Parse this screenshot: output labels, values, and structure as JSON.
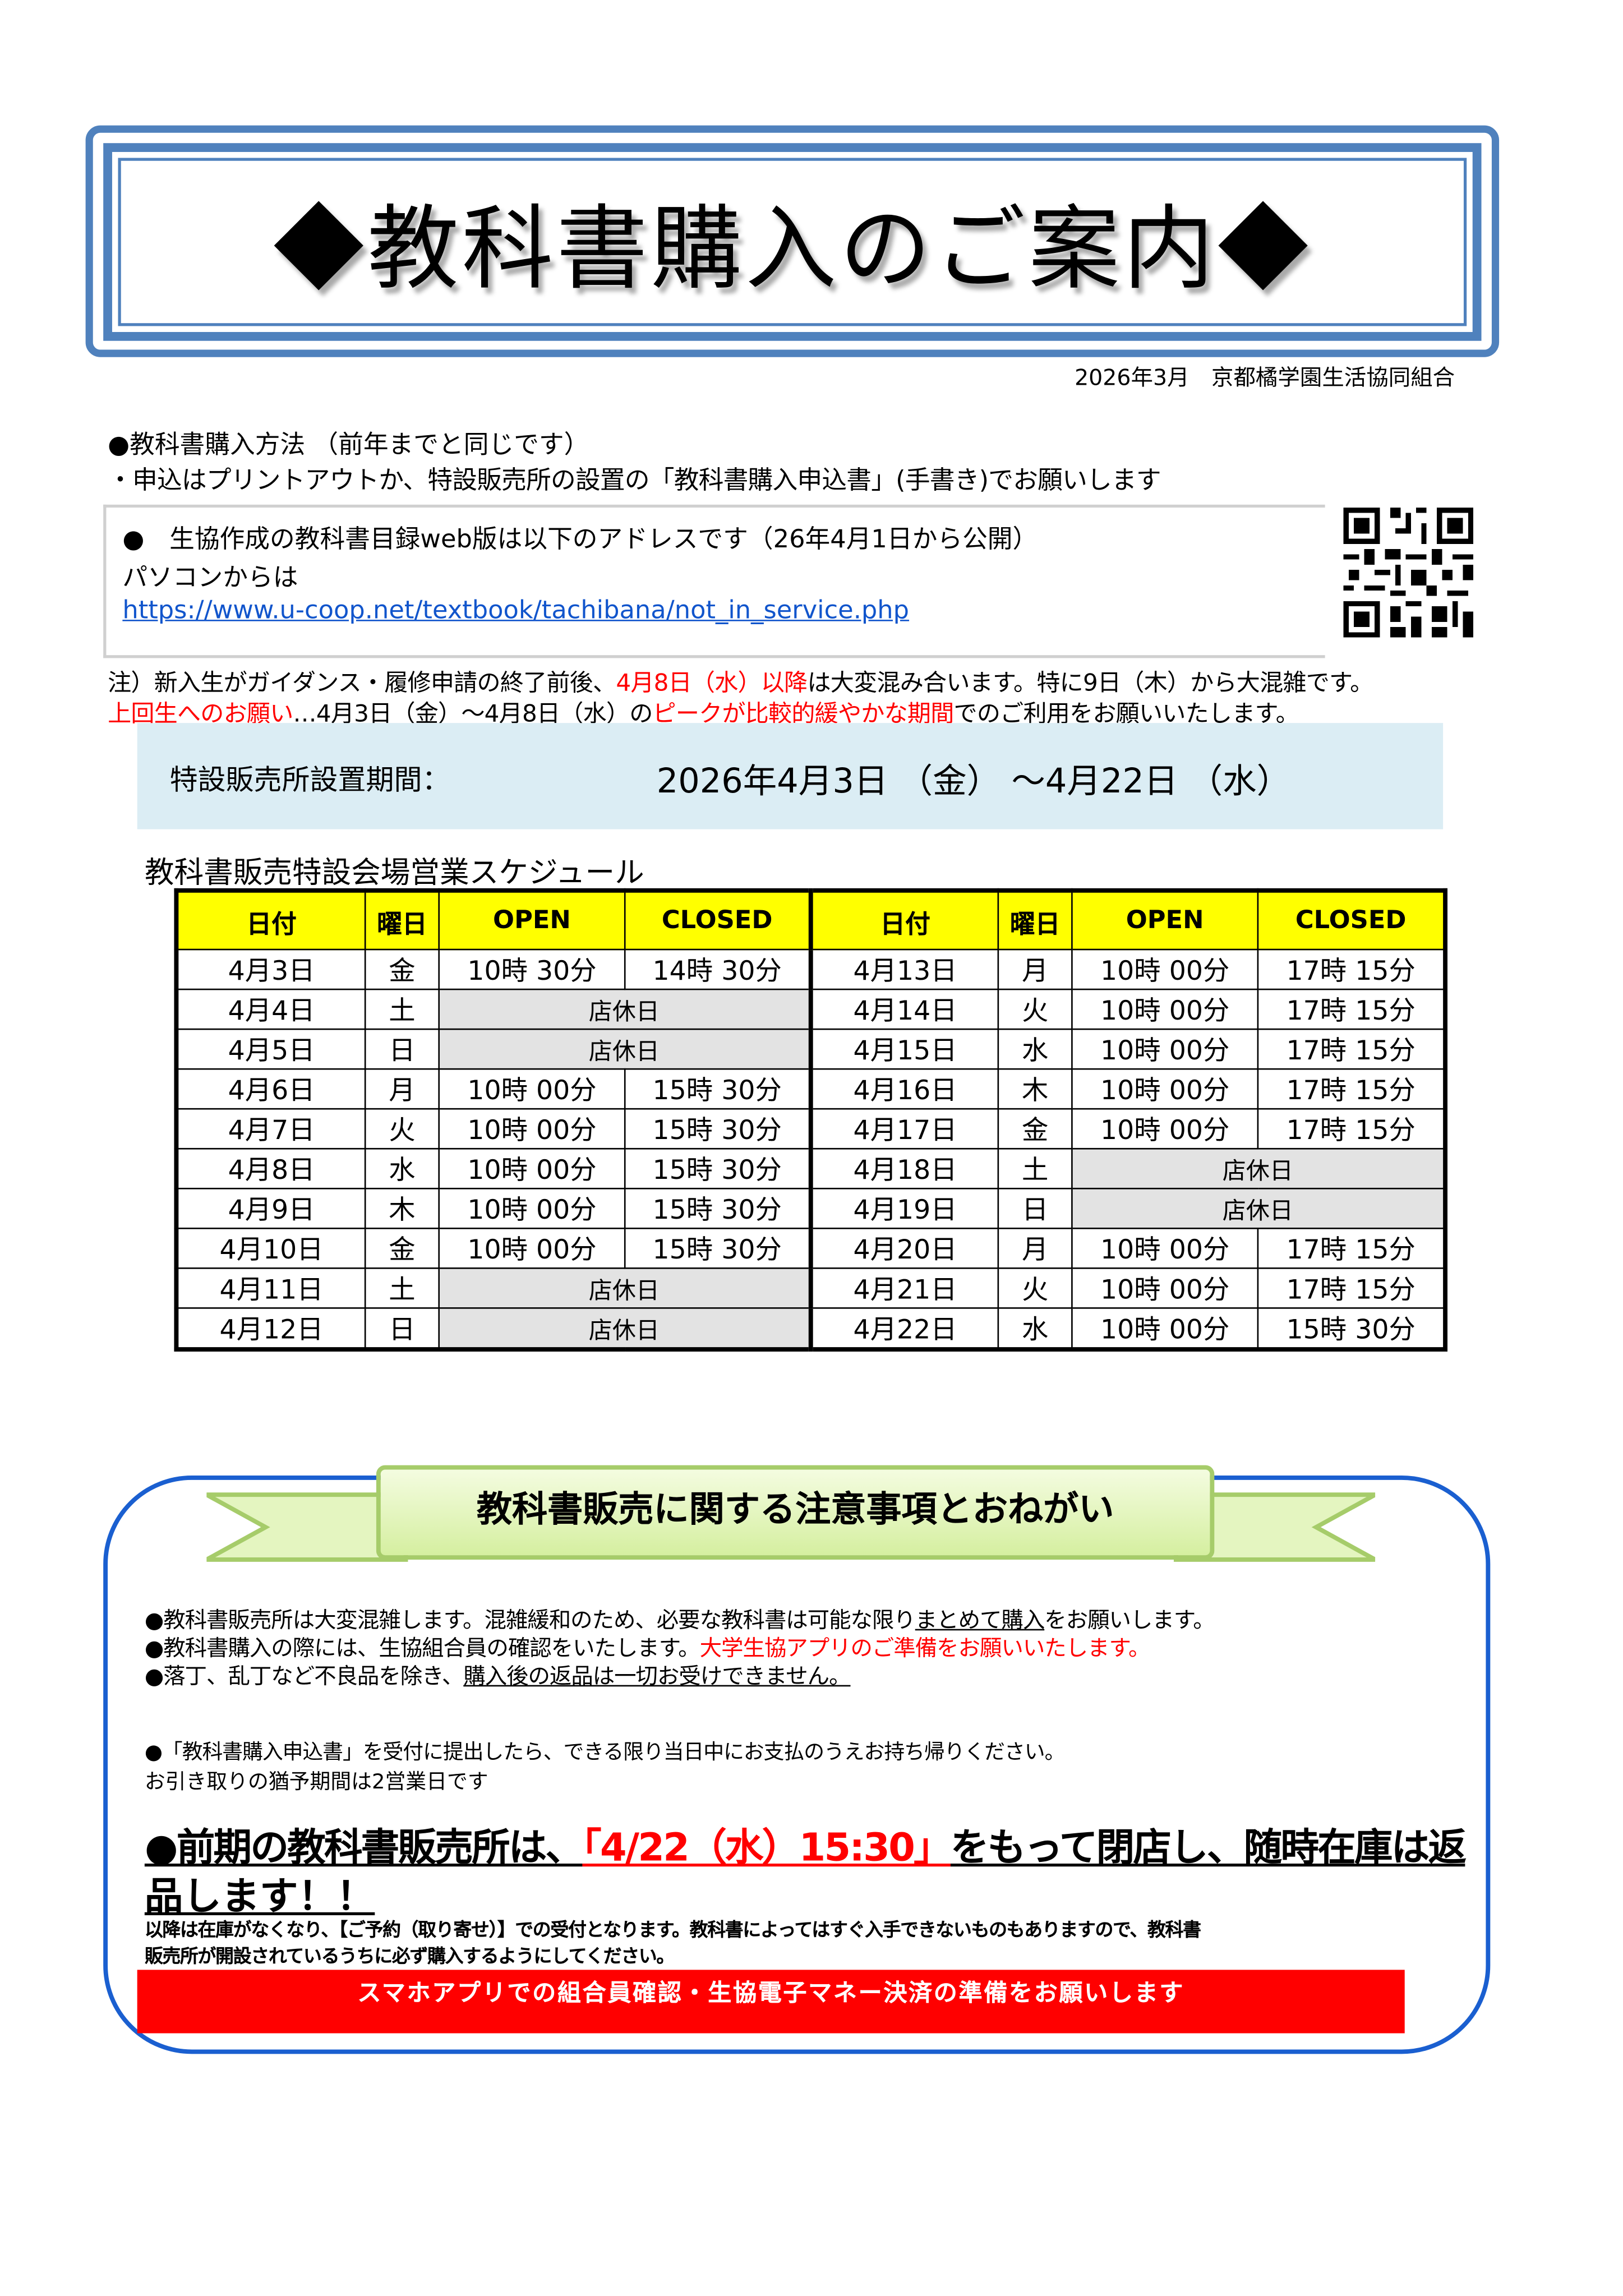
{
  "header": {
    "title": "◆教科書購入のご案内◆",
    "date_org": "2026年3月　京都橘学園生活協同組合"
  },
  "method": {
    "heading": "●教科書購入方法 （前年までと同じです）",
    "line": "・申込はプリントアウトか、特設販売所の設置の「教科書購入申込書」(手書き)でお願いします"
  },
  "web": {
    "line1": "●　生協作成の教科書目録web版は以下のアドレスです（26年4月1日から公開）",
    "line2": "パソコンからは",
    "url": "https://www.u-coop.net/textbook/tachibana/not_in_service.php",
    "qr_icon": "qr-code"
  },
  "notes": {
    "n1_a": "注）新入生がガイダンス・履修申請の終了前後、",
    "n1_red": "4月8日（水）以降",
    "n1_b": "は大変混み合います。特に9日（木）から大混雑です。",
    "n2_red1": "上回生へのお願い",
    "n2_a": "…4月3日（金）～4月8日（水）の",
    "n2_red2": "ピークが比較的緩やかな期間",
    "n2_b": "でのご利用をお願いいたします。"
  },
  "period": {
    "label": "特設販売所設置期間：",
    "value": "2026年4月3日 （金） ～4月22日 （水）"
  },
  "schedule": {
    "title": "教科書販売特設会場営業スケジュール",
    "headers": [
      "日付",
      "曜日",
      "OPEN",
      "CLOSED",
      "日付",
      "曜日",
      "OPEN",
      "CLOSED"
    ],
    "closed_label": "店休日",
    "left": [
      {
        "date": "4月3日",
        "day": "金",
        "open": "10時 30分",
        "close": "14時 30分"
      },
      {
        "date": "4月4日",
        "day": "土",
        "closed": true
      },
      {
        "date": "4月5日",
        "day": "日",
        "closed": true
      },
      {
        "date": "4月6日",
        "day": "月",
        "open": "10時 00分",
        "close": "15時 30分"
      },
      {
        "date": "4月7日",
        "day": "火",
        "open": "10時 00分",
        "close": "15時 30分"
      },
      {
        "date": "4月8日",
        "day": "水",
        "open": "10時 00分",
        "close": "15時 30分"
      },
      {
        "date": "4月9日",
        "day": "木",
        "open": "10時 00分",
        "close": "15時 30分"
      },
      {
        "date": "4月10日",
        "day": "金",
        "open": "10時 00分",
        "close": "15時 30分"
      },
      {
        "date": "4月11日",
        "day": "土",
        "closed": true
      },
      {
        "date": "4月12日",
        "day": "日",
        "closed": true
      }
    ],
    "right": [
      {
        "date": "4月13日",
        "day": "月",
        "open": "10時 00分",
        "close": "17時 15分"
      },
      {
        "date": "4月14日",
        "day": "火",
        "open": "10時 00分",
        "close": "17時 15分"
      },
      {
        "date": "4月15日",
        "day": "水",
        "open": "10時 00分",
        "close": "17時 15分"
      },
      {
        "date": "4月16日",
        "day": "木",
        "open": "10時 00分",
        "close": "17時 15分"
      },
      {
        "date": "4月17日",
        "day": "金",
        "open": "10時 00分",
        "close": "17時 15分"
      },
      {
        "date": "4月18日",
        "day": "土",
        "closed": true
      },
      {
        "date": "4月19日",
        "day": "日",
        "closed": true
      },
      {
        "date": "4月20日",
        "day": "月",
        "open": "10時 00分",
        "close": "17時 15分"
      },
      {
        "date": "4月21日",
        "day": "火",
        "open": "10時 00分",
        "close": "17時 15分"
      },
      {
        "date": "4月22日",
        "day": "水",
        "open": "10時 00分",
        "close": "15時 30分"
      }
    ]
  },
  "notice": {
    "title": "教科書販売に関する注意事項とおねがい",
    "b1_a": "●教科書販売所は大変混雑します。混雑緩和のため、必要な教科書は可能な限り",
    "b1_u": "まとめて購入",
    "b1_b": "をお願いします。",
    "b2_a": "●教科書購入の際には、生協組合員の確認をいたします。",
    "b2_red": "大学生協アプリのご準備をお願いいたします。",
    "b3_a": "●落丁、乱丁など不良品を除き、",
    "b3_u": "購入後の返品は一切お受けできません。",
    "b4": "●「教科書購入申込書」を受付に提出したら、できる限り当日中にお支払のうえお持ち帰りください。",
    "b5": "お引き取りの猶予期間は2営業日です",
    "big_a": "●前期の教科書販売所は、",
    "big_red": "「4/22（水）15:30」",
    "big_b": "をもって閉店し、随時在庫は返",
    "big_c": "品します！！",
    "small1": "以降は在庫がなくなり、【ご予約（取り寄せ）】での受付となります。教科書によってはすぐ入手できないものもありますので、教科書",
    "small2": "販売所が開設されているうちに必ず購入するようにしてください。",
    "red_bar": "スマホアプリでの組合員確認・生協電子マネー決済の準備をお願いします"
  }
}
